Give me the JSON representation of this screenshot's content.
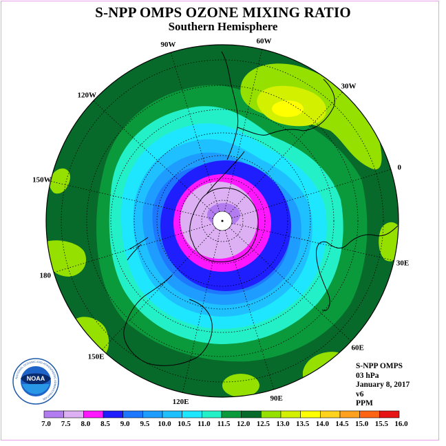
{
  "header": {
    "title": "S-NPP OMPS OZONE MIXING RATIO",
    "subtitle": "Southern Hemisphere"
  },
  "map": {
    "projection": "south-polar-stereographic",
    "longitude_labels": [
      "90W",
      "60W",
      "30W",
      "0",
      "30E",
      "60E",
      "90E",
      "120E",
      "150E",
      "180",
      "150W",
      "120W"
    ],
    "fill_levels_ppm": {
      "polar_center": 7.5,
      "inner_vortex": 8.0,
      "vortex_edge": 8.5,
      "ring_1": 9.0,
      "ring_2": 9.5,
      "ring_3": 10.0,
      "ring_4": 10.5,
      "outer_ring": 11.0,
      "mid_latitudes": 11.5,
      "background": 12.0,
      "highs": 12.5,
      "high_inner": 13.0,
      "high_peak": 13.5
    }
  },
  "info": {
    "lines": [
      "S-NPP OMPS",
      "03 hPa",
      "January 8, 2017",
      "v6",
      "PPM"
    ]
  },
  "logo": {
    "text": "NOAA",
    "ring_text": "NATIONAL OCEANIC AND ATMOSPHERIC ADMINISTRATION",
    "ring_text_bottom": "U.S. DEPARTMENT OF COMMERCE"
  },
  "colorbar": {
    "labels": [
      "7.0",
      "7.5",
      "8.0",
      "8.5",
      "9.0",
      "9.5",
      "10.0",
      "10.5",
      "11.0",
      "11.5",
      "12.0",
      "12.5",
      "13.0",
      "13.5",
      "14.0",
      "14.5",
      "15.0",
      "15.5",
      "16.0"
    ],
    "colors": [
      "#b27cf0",
      "#dcb0f2",
      "#ff18ff",
      "#1e1eff",
      "#1e78ff",
      "#1e9cff",
      "#1ec0ff",
      "#1ee6ff",
      "#24f0c8",
      "#0a9a3c",
      "#076a2a",
      "#96e000",
      "#d2f000",
      "#ffff00",
      "#ffd21e",
      "#ffa01e",
      "#ff6414",
      "#e61414",
      "#8c4b2d"
    ]
  },
  "colors": {
    "background": "#076a2a",
    "coast": "#000000",
    "frame": "#e6a0e6"
  }
}
